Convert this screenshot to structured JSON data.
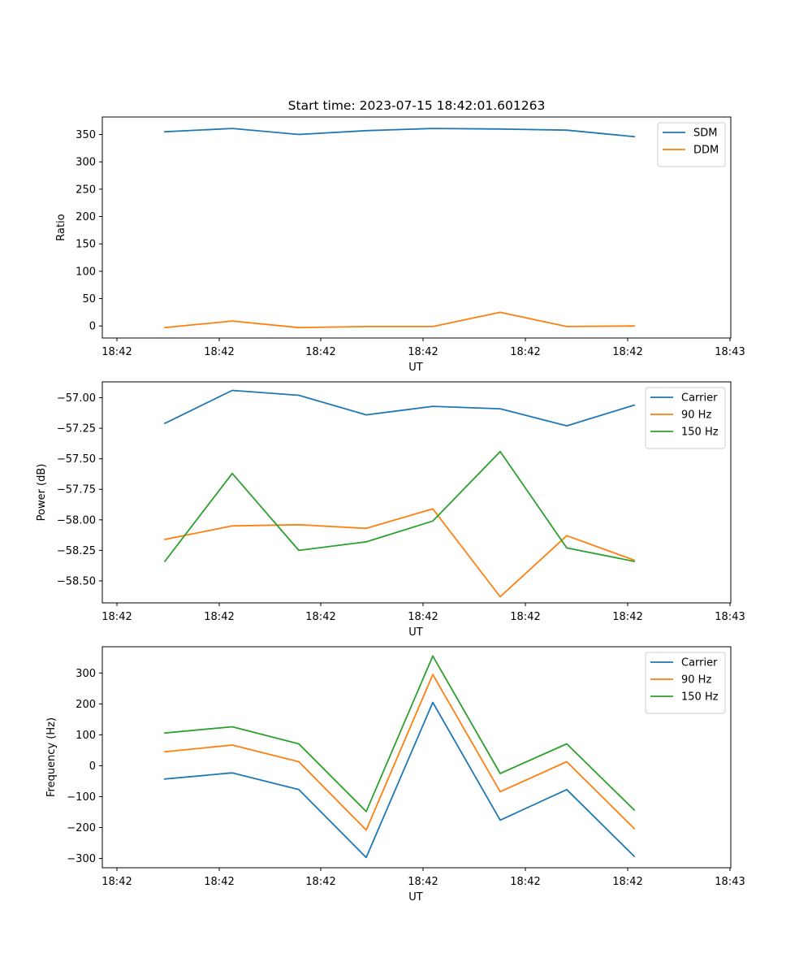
{
  "chart_data": [
    {
      "type": "line",
      "title": "Start time: 2023-07-15 18:42:01.601263",
      "xlabel": "UT",
      "ylabel": "Ratio",
      "x_tick_labels": [
        "18:42",
        "18:42",
        "18:42",
        "18:42",
        "18:42",
        "18:42",
        "18:43"
      ],
      "y_ticks": [
        0,
        50,
        100,
        150,
        200,
        250,
        300,
        350
      ],
      "y_tick_labels": [
        "0",
        "50",
        "100",
        "150",
        "200",
        "250",
        "300",
        "350"
      ],
      "ylim": [
        -22,
        382
      ],
      "legend_position": "top-right",
      "series": [
        {
          "name": "SDM",
          "color": "#1f77b4",
          "values": [
            355,
            361,
            350,
            357,
            361,
            360,
            358,
            346
          ]
        },
        {
          "name": "DDM",
          "color": "#ff7f0e",
          "values": [
            -3,
            9,
            -3,
            -1,
            -1,
            25,
            -1,
            0
          ]
        }
      ]
    },
    {
      "type": "line",
      "title": "",
      "xlabel": "UT",
      "ylabel": "Power (dB)",
      "x_tick_labels": [
        "18:42",
        "18:42",
        "18:42",
        "18:42",
        "18:42",
        "18:42",
        "18:43"
      ],
      "y_ticks": [
        -58.5,
        -58.25,
        -58.0,
        -57.75,
        -57.5,
        -57.25,
        -57.0
      ],
      "y_tick_labels": [
        "−58.50",
        "−58.25",
        "−58.00",
        "−57.75",
        "−57.50",
        "−57.25",
        "−57.00"
      ],
      "ylim": [
        -58.68,
        -56.87
      ],
      "legend_position": "top-right",
      "series": [
        {
          "name": "Carrier",
          "color": "#1f77b4",
          "values": [
            -57.21,
            -56.94,
            -56.98,
            -57.14,
            -57.07,
            -57.09,
            -57.23,
            -57.06
          ]
        },
        {
          "name": "90 Hz",
          "color": "#ff7f0e",
          "values": [
            -58.16,
            -58.05,
            -58.04,
            -58.07,
            -57.91,
            -58.63,
            -58.13,
            -58.33
          ]
        },
        {
          "name": "150 Hz",
          "color": "#2ca02c",
          "values": [
            -58.34,
            -57.62,
            -58.25,
            -58.18,
            -58.01,
            -57.44,
            -58.23,
            -58.34
          ]
        }
      ]
    },
    {
      "type": "line",
      "title": "",
      "xlabel": "UT",
      "ylabel": "Frequency (Hz)",
      "x_tick_labels": [
        "18:42",
        "18:42",
        "18:42",
        "18:42",
        "18:42",
        "18:42",
        "18:43"
      ],
      "y_ticks": [
        -300,
        -200,
        -100,
        0,
        100,
        200,
        300
      ],
      "y_tick_labels": [
        "−300",
        "−200",
        "−100",
        "0",
        "100",
        "200",
        "300"
      ],
      "ylim": [
        -330,
        385
      ],
      "legend_position": "top-right",
      "series": [
        {
          "name": "Carrier",
          "color": "#1f77b4",
          "values": [
            -43,
            -23,
            -77,
            -297,
            205,
            -176,
            -77,
            -293
          ]
        },
        {
          "name": "90 Hz",
          "color": "#ff7f0e",
          "values": [
            45,
            67,
            13,
            -208,
            295,
            -84,
            13,
            -203
          ]
        },
        {
          "name": "150 Hz",
          "color": "#2ca02c",
          "values": [
            106,
            126,
            71,
            -148,
            355,
            -25,
            71,
            -143
          ]
        }
      ]
    }
  ]
}
